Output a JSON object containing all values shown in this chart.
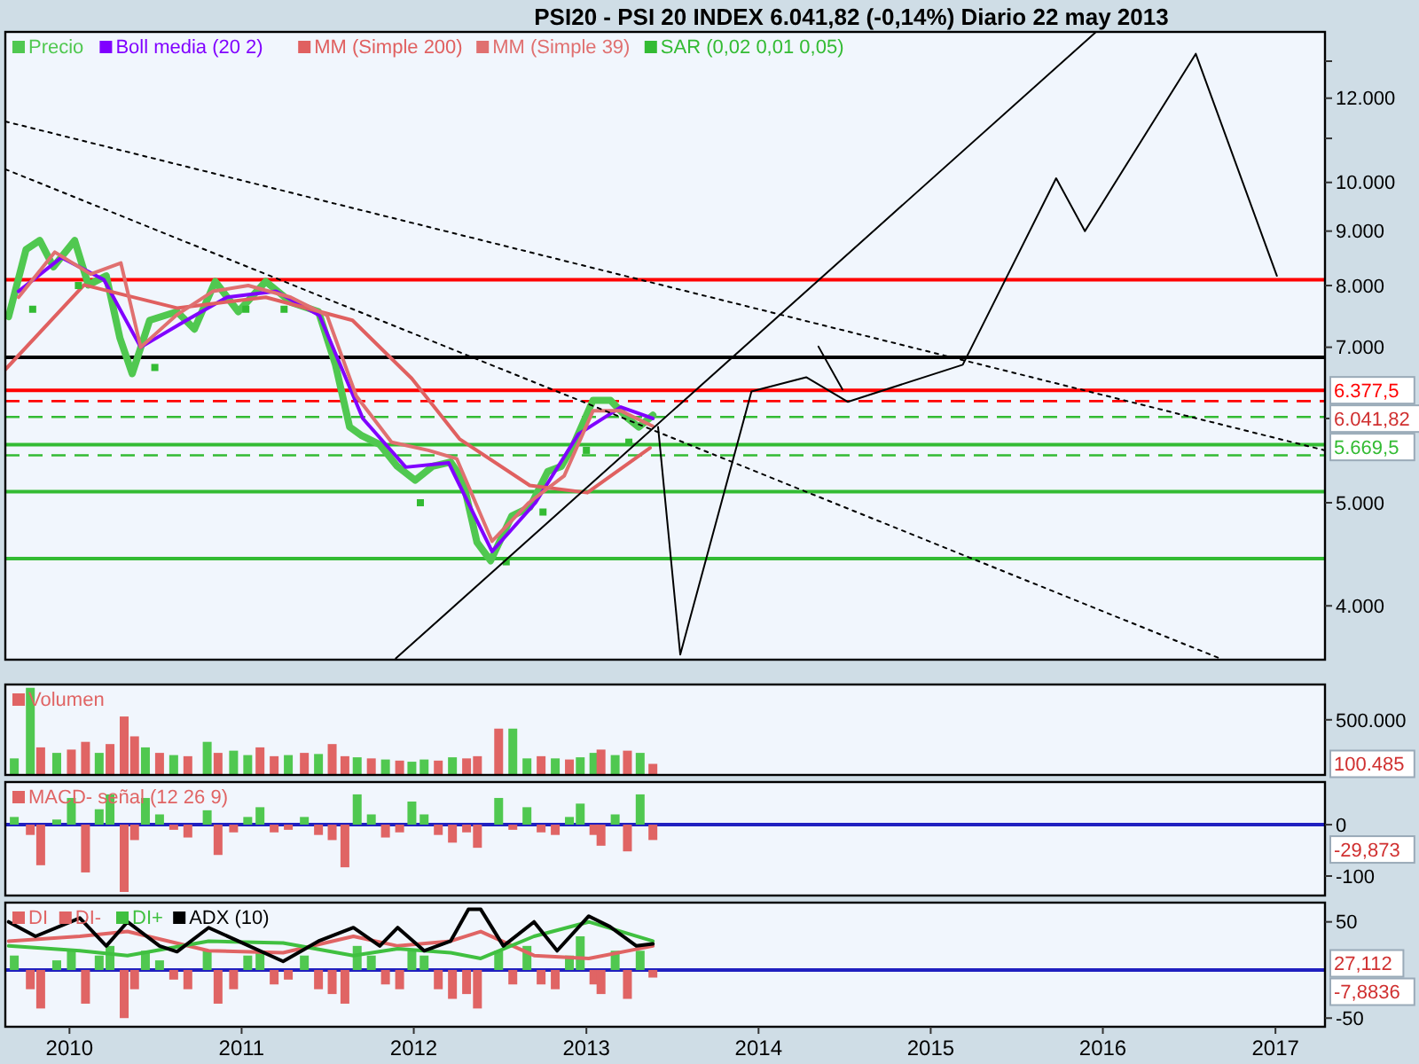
{
  "chart_data": [
    {
      "type": "line",
      "title": "PSI20 - PSI 20 INDEX    6.041,82 (-0,14%)    Diario  22 may 2013",
      "legend": "top left",
      "log": true,
      "tick_labels": "y",
      "xlim": [
        "2009-08-18",
        "2017-04-16"
      ],
      "ylim": [
        3560,
        13850
      ],
      "yticks": [
        {
          "value": 4000,
          "label": "4.000"
        },
        {
          "value": 5000,
          "label": "5.000"
        },
        {
          "value": 6000,
          "label": null
        },
        {
          "value": 7000,
          "label": "7.000"
        },
        {
          "value": 8000,
          "label": "8.000"
        },
        {
          "value": 9000,
          "label": "9.000"
        },
        {
          "value": 10000,
          "label": "10.000"
        },
        {
          "value": 11000,
          "label": null
        },
        {
          "value": 12000,
          "label": "12.000"
        },
        {
          "value": 13000,
          "label": null
        }
      ],
      "series": [
        {
          "name": "Precio",
          "color": "#50c850",
          "x": [
            "2009-08-25",
            "2009-10-01",
            "2009-10-30",
            "2009-11-28",
            "2010-01-12",
            "2010-02-10",
            "2010-03-20",
            "2010-04-18",
            "2010-05-14",
            "2010-06-20",
            "2010-08-17",
            "2010-09-23",
            "2010-11-06",
            "2010-12-25",
            "2011-02-21",
            "2011-04-17",
            "2011-06-13",
            "2011-07-19",
            "2011-08-18",
            "2011-09-13",
            "2011-10-21",
            "2011-11-27",
            "2012-01-04",
            "2012-02-10",
            "2012-03-19",
            "2012-04-14",
            "2012-05-14",
            "2012-06-12",
            "2012-07-27",
            "2012-09-03",
            "2012-10-11",
            "2012-11-09",
            "2012-12-05",
            "2013-01-15",
            "2013-02-21",
            "2013-03-30",
            "2013-04-22",
            "2013-05-22"
          ],
          "values": [
            7480,
            8650,
            8820,
            8330,
            8820,
            8010,
            8170,
            7140,
            6610,
            7420,
            7560,
            7280,
            8070,
            7560,
            8070,
            7710,
            7560,
            6740,
            5890,
            5780,
            5670,
            5410,
            5250,
            5410,
            5460,
            5250,
            4590,
            4410,
            4860,
            4950,
            5350,
            5410,
            5670,
            6240,
            6240,
            6000,
            5890,
            6041.82
          ]
        },
        {
          "name": "Boll media (20 2)",
          "color": "#8000ff",
          "x": [
            "2009-09-15",
            "2009-12-15",
            "2010-03-15",
            "2010-06-01",
            "2010-09-01",
            "2010-12-01",
            "2011-03-15",
            "2011-06-15",
            "2011-09-15",
            "2011-12-15",
            "2012-03-15",
            "2012-06-15",
            "2012-09-15",
            "2012-12-15",
            "2013-03-15",
            "2013-05-22"
          ],
          "values": [
            7900,
            8500,
            8100,
            7000,
            7400,
            7800,
            7900,
            7500,
            6000,
            5400,
            5450,
            4500,
            5000,
            5800,
            6150,
            6000
          ]
        },
        {
          "name": "MM (Simple 200)",
          "color": "#e06060",
          "x": [
            "2009-08-18",
            "2010-02-01",
            "2010-08-17",
            "2011-02-21",
            "2011-08-24",
            "2011-12-28",
            "2012-04-07",
            "2012-09-03",
            "2013-01-03",
            "2013-05-16"
          ],
          "values": [
            6670,
            8010,
            7620,
            7800,
            7420,
            6540,
            5740,
            5190,
            5110,
            5630
          ]
        },
        {
          "name": "MM (Simple 39)",
          "color": "#e07070",
          "x": [
            "2009-09-15",
            "2009-12-01",
            "2010-02-15",
            "2010-04-20",
            "2010-06-01",
            "2010-08-15",
            "2010-11-01",
            "2011-01-15",
            "2011-04-15",
            "2011-07-01",
            "2011-09-01",
            "2011-11-15",
            "2012-02-01",
            "2012-04-01",
            "2012-06-15",
            "2012-09-01",
            "2012-11-15",
            "2013-01-15",
            "2013-03-15",
            "2013-05-22"
          ],
          "values": [
            7800,
            8600,
            8200,
            8400,
            7000,
            7500,
            7900,
            8000,
            7800,
            7500,
            6300,
            5700,
            5600,
            5500,
            4600,
            5000,
            5300,
            6100,
            6100,
            5900
          ]
        },
        {
          "name": "SAR (0,02 0,01 0,05)",
          "type": "scatter",
          "marker": "square",
          "color": "#33bb33",
          "x": [
            "2009-10-15",
            "2010-01-20",
            "2010-07-01",
            "2011-01-10",
            "2011-04-01",
            "2012-01-15",
            "2012-07-15",
            "2012-10-01",
            "2013-01-01",
            "2013-04-01"
          ],
          "values": [
            7600,
            8000,
            6700,
            7600,
            7600,
            5000,
            4400,
            4900,
            5600,
            5700
          ]
        },
        {
          "color": "#000000",
          "line_style": "dotted",
          "x": [
            "2009-08-18",
            "2017-04-16"
          ],
          "values": [
            11410,
            5600
          ]
        },
        {
          "color": "#000000",
          "line_style": "dotted",
          "x": [
            "2009-08-18",
            "2016-09-05"
          ],
          "values": [
            10290,
            3570
          ]
        },
        {
          "color": "#000000",
          "line_style": "solid",
          "x": [
            "2011-11-24",
            "2015-12-16"
          ],
          "values": [
            3570,
            13830
          ]
        },
        {
          "color": "#000000",
          "line_style": "solid",
          "x": [
            "2013-06-02",
            "2013-07-19",
            "2013-12-17",
            "2014-04-12",
            "2014-07-09",
            "2015-03-10",
            "2015-09-24",
            "2015-11-24",
            "2016-07-16",
            "2017-01-04"
          ],
          "values": [
            5890,
            3600,
            6360,
            6560,
            6220,
            6740,
            10090,
            9000,
            13210,
            8170
          ]
        },
        {
          "color": "#000000",
          "line_style": "solid",
          "x": [
            "2014-05-08",
            "2014-06-28"
          ],
          "values": [
            7010,
            6390
          ]
        }
      ],
      "ref_lines": [
        {
          "axis": "y",
          "value": 8100,
          "color": "#ff0000"
        },
        {
          "axis": "y",
          "value": 6850,
          "color": "#000000"
        },
        {
          "axis": "y",
          "value": 6377.5,
          "label": "6.377,5",
          "color": "#ff0000"
        },
        {
          "axis": "y",
          "value": 6230,
          "color": "#ff0000",
          "line_style": "dashed"
        },
        {
          "axis": "y",
          "value": 6020,
          "color": "#33bb33",
          "line_style": "dashed"
        },
        {
          "axis": "y",
          "value": 5669.5,
          "label": "5.669,5",
          "color": "#33bb33"
        },
        {
          "axis": "y",
          "value": 5540,
          "color": "#33bb33",
          "line_style": "dashed"
        },
        {
          "axis": "y",
          "value": 5120,
          "color": "#33bb33"
        },
        {
          "axis": "y",
          "value": 4430,
          "color": "#33bb33"
        }
      ],
      "annotations": [
        "6.041,82"
      ]
    },
    {
      "type": "bar",
      "legend": "top left",
      "tick_labels": "y",
      "xlim": [
        "2009-08-18",
        "2017-04-16"
      ],
      "ylim": [
        0,
        820000
      ],
      "yticks": [
        {
          "value": 500000,
          "label": "500.000"
        }
      ],
      "x": [
        "2009-09-06",
        "2009-10-10",
        "2009-11-01",
        "2009-12-05",
        "2010-01-05",
        "2010-02-04",
        "2010-03-05",
        "2010-03-28",
        "2010-04-27",
        "2010-05-19",
        "2010-06-11",
        "2010-07-11",
        "2010-08-10",
        "2010-09-09",
        "2010-10-20",
        "2010-11-12",
        "2010-12-15",
        "2011-01-14",
        "2011-02-09",
        "2011-03-11",
        "2011-04-10",
        "2011-05-14",
        "2011-06-13",
        "2011-07-12",
        "2011-08-08",
        "2011-09-03",
        "2011-10-03",
        "2011-11-02",
        "2011-12-02",
        "2011-12-28",
        "2012-01-23",
        "2012-02-22",
        "2012-03-23",
        "2012-04-22",
        "2012-05-15",
        "2012-06-29",
        "2012-07-29",
        "2012-08-28",
        "2012-09-27",
        "2012-10-27",
        "2012-11-26",
        "2012-12-19",
        "2013-01-17",
        "2013-02-01",
        "2013-03-03",
        "2013-03-29",
        "2013-04-25",
        "2013-05-22"
      ],
      "series": [
        {
          "name": "Volumen",
          "color": "#e06464",
          "colors": [
            "#50c850",
            "#50c850",
            "#e06464",
            "#50c850",
            "#e06464",
            "#e06464",
            "#50c850",
            "#e06464",
            "#e06464",
            "#e06464",
            "#50c850",
            "#e06464",
            "#50c850",
            "#e06464",
            "#50c850",
            "#e06464",
            "#50c850",
            "#50c850",
            "#e06464",
            "#e06464",
            "#50c850",
            "#e06464",
            "#50c850",
            "#e06464",
            "#e06464",
            "#50c850",
            "#e06464",
            "#50c850",
            "#e06464",
            "#50c850",
            "#50c850",
            "#e06464",
            "#50c850",
            "#e06464",
            "#e06464",
            "#e06464",
            "#50c850",
            "#50c850",
            "#e06464",
            "#50c850",
            "#e06464",
            "#50c850",
            "#50c850",
            "#e06464",
            "#50c850",
            "#e06464",
            "#50c850",
            "#e06464"
          ],
          "values": [
            150000,
            790000,
            250000,
            200000,
            230000,
            300000,
            200000,
            280000,
            530000,
            350000,
            250000,
            200000,
            180000,
            170000,
            300000,
            200000,
            220000,
            180000,
            250000,
            170000,
            180000,
            200000,
            190000,
            280000,
            170000,
            160000,
            150000,
            140000,
            130000,
            120000,
            140000,
            130000,
            160000,
            150000,
            170000,
            420000,
            420000,
            150000,
            170000,
            150000,
            140000,
            160000,
            200000,
            230000,
            180000,
            220000,
            200000,
            100485
          ]
        }
      ],
      "annotations": [
        "100.485"
      ]
    },
    {
      "type": "bar",
      "legend": "top left",
      "tick_labels": "y",
      "xlim": [
        "2009-08-18",
        "2017-04-16"
      ],
      "ylim": [
        -138,
        83
      ],
      "yticks": [
        0,
        -100
      ],
      "x": [
        "2009-09-06",
        "2009-10-10",
        "2009-11-01",
        "2009-12-05",
        "2010-01-05",
        "2010-02-04",
        "2010-03-05",
        "2010-03-28",
        "2010-04-27",
        "2010-05-19",
        "2010-06-11",
        "2010-07-11",
        "2010-08-10",
        "2010-09-09",
        "2010-10-20",
        "2010-11-12",
        "2010-12-15",
        "2011-01-14",
        "2011-02-09",
        "2011-03-11",
        "2011-04-10",
        "2011-05-14",
        "2011-06-13",
        "2011-07-12",
        "2011-08-08",
        "2011-09-03",
        "2011-10-03",
        "2011-11-02",
        "2011-12-02",
        "2011-12-28",
        "2012-01-23",
        "2012-02-22",
        "2012-03-23",
        "2012-04-22",
        "2012-05-15",
        "2012-06-29",
        "2012-07-29",
        "2012-08-28",
        "2012-09-27",
        "2012-10-27",
        "2012-11-26",
        "2012-12-19",
        "2013-01-17",
        "2013-02-01",
        "2013-03-03",
        "2013-03-29",
        "2013-04-25",
        "2013-05-22"
      ],
      "series": [
        {
          "name": "MACD- señal (12 26 9)",
          "color": "#e06464",
          "colors": [
            "#50c850",
            "#e06464",
            "#e06464",
            "#50c850",
            "#50c850",
            "#e06464",
            "#50c850",
            "#50c850",
            "#e06464",
            "#e06464",
            "#50c850",
            "#50c850",
            "#e06464",
            "#e06464",
            "#50c850",
            "#e06464",
            "#e06464",
            "#50c850",
            "#50c850",
            "#e06464",
            "#e06464",
            "#50c850",
            "#e06464",
            "#e06464",
            "#e06464",
            "#50c850",
            "#50c850",
            "#e06464",
            "#e06464",
            "#50c850",
            "#50c850",
            "#e06464",
            "#e06464",
            "#e06464",
            "#e06464",
            "#50c850",
            "#e06464",
            "#50c850",
            "#e06464",
            "#e06464",
            "#50c850",
            "#50c850",
            "#e06464",
            "#e06464",
            "#50c850",
            "#e06464",
            "#50c850",
            "#e06464"
          ],
          "values": [
            15,
            -20,
            -79,
            10,
            52,
            -93,
            30,
            59,
            -131,
            -30,
            52,
            20,
            -10,
            -25,
            28,
            -59,
            -15,
            15,
            34,
            -15,
            -10,
            15,
            -20,
            -30,
            -83,
            59,
            20,
            -25,
            -15,
            45,
            20,
            -20,
            -35,
            -15,
            -45,
            52,
            -10,
            34,
            -15,
            -20,
            15,
            41,
            -20,
            -41,
            20,
            -52,
            59,
            -29.873
          ]
        }
      ],
      "ref_lines": [
        {
          "axis": "y",
          "value": 0,
          "color": "#2020c0"
        }
      ],
      "annotations": [
        "-29,873"
      ]
    },
    {
      "type": "bar",
      "legend": "top left",
      "xlim": [
        "2009-08-18",
        "2017-04-16"
      ],
      "ylim": [
        -59,
        70
      ],
      "yticks": [
        50,
        -50
      ],
      "xticks": [
        "2010",
        "2011",
        "2012",
        "2013",
        "2014",
        "2015",
        "2016",
        "2017"
      ],
      "x": [
        "2009-09-06",
        "2009-10-10",
        "2009-11-01",
        "2009-12-05",
        "2010-01-05",
        "2010-02-04",
        "2010-03-05",
        "2010-03-28",
        "2010-04-27",
        "2010-05-19",
        "2010-06-11",
        "2010-07-11",
        "2010-08-10",
        "2010-09-09",
        "2010-10-20",
        "2010-11-12",
        "2010-12-15",
        "2011-01-14",
        "2011-02-09",
        "2011-03-11",
        "2011-04-10",
        "2011-05-14",
        "2011-06-13",
        "2011-07-12",
        "2011-08-08",
        "2011-09-03",
        "2011-10-03",
        "2011-11-02",
        "2011-12-02",
        "2011-12-28",
        "2012-01-23",
        "2012-02-22",
        "2012-03-23",
        "2012-04-22",
        "2012-05-15",
        "2012-06-29",
        "2012-07-29",
        "2012-08-28",
        "2012-09-27",
        "2012-10-27",
        "2012-11-26",
        "2012-12-19",
        "2013-01-17",
        "2013-02-01",
        "2013-03-03",
        "2013-03-29",
        "2013-04-25",
        "2013-05-22"
      ],
      "series": [
        {
          "name": "DI",
          "color": "#e06464",
          "colors": [
            "#50c850",
            "#e06464",
            "#e06464",
            "#50c850",
            "#50c850",
            "#e06464",
            "#50c850",
            "#50c850",
            "#e06464",
            "#e06464",
            "#50c850",
            "#50c850",
            "#e06464",
            "#e06464",
            "#50c850",
            "#e06464",
            "#e06464",
            "#50c850",
            "#50c850",
            "#e06464",
            "#e06464",
            "#50c850",
            "#e06464",
            "#e06464",
            "#e06464",
            "#50c850",
            "#50c850",
            "#e06464",
            "#e06464",
            "#50c850",
            "#50c850",
            "#e06464",
            "#e06464",
            "#e06464",
            "#e06464",
            "#50c850",
            "#e06464",
            "#50c850",
            "#e06464",
            "#e06464",
            "#50c850",
            "#50c850",
            "#e06464",
            "#e06464",
            "#50c850",
            "#e06464",
            "#50c850",
            "#e06464"
          ],
          "values": [
            15,
            -20,
            -40,
            10,
            20,
            -35,
            15,
            25,
            -50,
            -20,
            20,
            10,
            -10,
            -20,
            20,
            -35,
            -20,
            15,
            20,
            -15,
            -10,
            15,
            -20,
            -25,
            -35,
            25,
            15,
            -15,
            -20,
            20,
            15,
            -20,
            -30,
            -25,
            -40,
            20,
            -15,
            25,
            -15,
            -20,
            15,
            35,
            -15,
            -25,
            20,
            -30,
            20,
            -7.8836
          ]
        },
        {
          "name": "DI-",
          "type": "line",
          "color": "#e06464",
          "x": [
            "2009-08-25",
            "2010-01-23",
            "2010-05-04",
            "2010-10-23",
            "2011-03-30",
            "2011-08-26",
            "2011-11-28",
            "2012-03-19",
            "2012-05-22",
            "2012-09-12",
            "2013-01-06",
            "2013-05-22"
          ],
          "values": [
            30,
            35,
            40,
            20,
            18,
            35,
            25,
            30,
            40,
            15,
            12,
            25
          ]
        },
        {
          "name": "DI+",
          "type": "line",
          "color": "#40c040",
          "x": [
            "2009-08-25",
            "2010-01-23",
            "2010-05-04",
            "2010-10-23",
            "2011-03-30",
            "2011-08-26",
            "2011-11-28",
            "2012-03-19",
            "2012-05-22",
            "2012-09-12",
            "2013-01-06",
            "2013-05-22"
          ],
          "values": [
            25,
            20,
            15,
            30,
            28,
            15,
            22,
            18,
            12,
            35,
            50,
            30
          ]
        },
        {
          "name": "ADX (10)",
          "type": "line",
          "color": "#000000",
          "x": [
            "2009-08-25",
            "2009-10-21",
            "2010-01-23",
            "2010-03-20",
            "2010-05-04",
            "2010-07-11",
            "2010-08-17",
            "2010-10-23",
            "2010-12-25",
            "2011-03-30",
            "2011-06-13",
            "2011-08-26",
            "2011-10-21",
            "2011-11-28",
            "2012-01-23",
            "2012-03-19",
            "2012-04-26",
            "2012-05-22",
            "2012-07-09",
            "2012-09-12",
            "2012-10-31",
            "2013-01-06",
            "2013-02-20",
            "2013-04-17",
            "2013-05-22"
          ],
          "values": [
            50,
            35,
            54,
            25,
            50,
            25,
            19,
            44,
            30,
            9,
            30,
            44,
            25,
            44,
            20,
            30,
            63,
            63,
            25,
            50,
            20,
            56,
            45,
            25,
            27.112
          ]
        }
      ],
      "ref_lines": [
        {
          "axis": "y",
          "value": 0,
          "color": "#2020c0"
        }
      ],
      "annotations": [
        "27,112",
        "-7,8836"
      ]
    }
  ]
}
